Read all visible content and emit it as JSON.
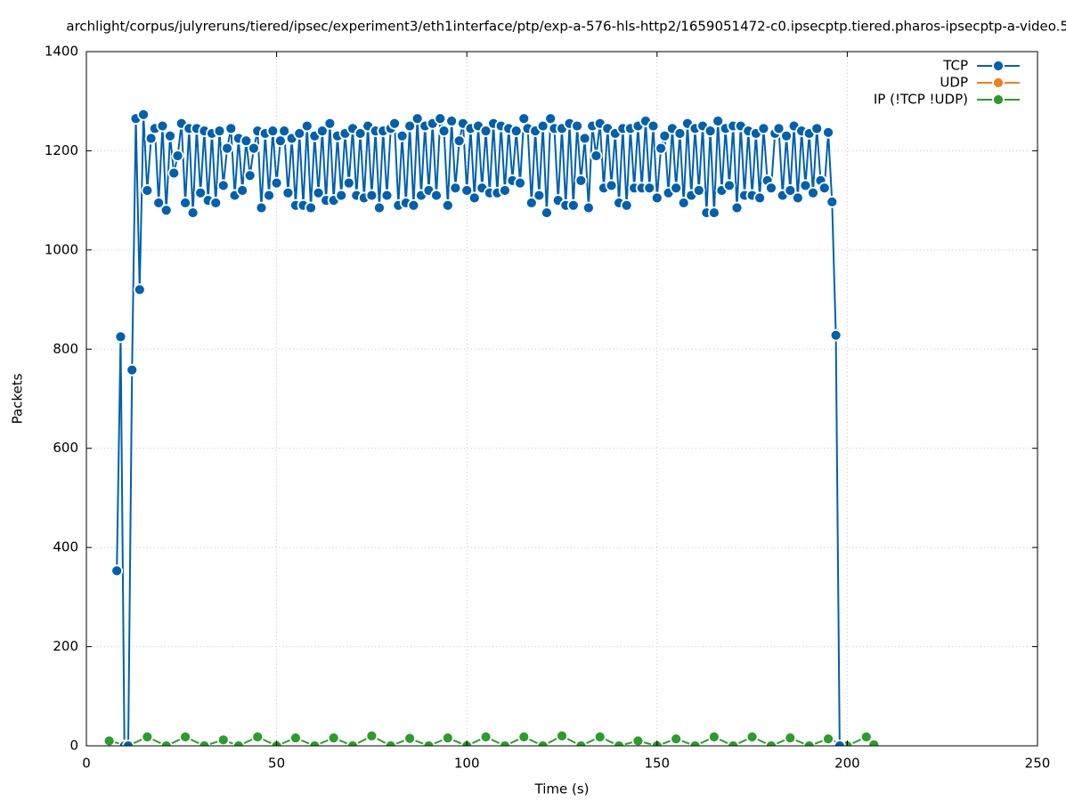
{
  "chart_data": {
    "type": "line",
    "title": "archlight/corpus/julyreruns/tiered/ipsec/experiment3/eth1interface/ptp/exp-a-576-hls-http2/1659051472-c0.ipsecptp.tiered.pharos-ipsecptp-a-video.5",
    "x_label": "Time (s)",
    "y_label": "Packets",
    "xlim": [
      0,
      250
    ],
    "xticks": [
      0,
      50,
      100,
      150,
      200,
      250
    ],
    "ylim": [
      0,
      1400
    ],
    "yticks": [
      0,
      200,
      400,
      600,
      800,
      1000,
      1200,
      1400
    ],
    "grid": true,
    "legend": "top-right",
    "series": [
      {
        "name": "TCP",
        "color": "#0060ad",
        "x": [
          8,
          9,
          10,
          11,
          12,
          13,
          14,
          15,
          16,
          17,
          18,
          19,
          20,
          21,
          22,
          23,
          24,
          25,
          26,
          27,
          28,
          29,
          30,
          31,
          32,
          33,
          34,
          35,
          36,
          37,
          38,
          39,
          40,
          41,
          42,
          43,
          44,
          45,
          46,
          47,
          48,
          49,
          50,
          51,
          52,
          53,
          54,
          55,
          56,
          57,
          58,
          59,
          60,
          61,
          62,
          63,
          64,
          65,
          66,
          67,
          68,
          69,
          70,
          71,
          72,
          73,
          74,
          75,
          76,
          77,
          78,
          79,
          80,
          81,
          82,
          83,
          84,
          85,
          86,
          87,
          88,
          89,
          90,
          91,
          92,
          93,
          94,
          95,
          96,
          97,
          98,
          99,
          100,
          101,
          102,
          103,
          104,
          105,
          106,
          107,
          108,
          109,
          110,
          111,
          112,
          113,
          114,
          115,
          116,
          117,
          118,
          119,
          120,
          121,
          122,
          123,
          124,
          125,
          126,
          127,
          128,
          129,
          130,
          131,
          132,
          133,
          134,
          135,
          136,
          137,
          138,
          139,
          140,
          141,
          142,
          143,
          144,
          145,
          146,
          147,
          148,
          149,
          150,
          151,
          152,
          153,
          154,
          155,
          156,
          157,
          158,
          159,
          160,
          161,
          162,
          163,
          164,
          165,
          166,
          167,
          168,
          169,
          170,
          171,
          172,
          173,
          174,
          175,
          176,
          177,
          178,
          179,
          180,
          181,
          182,
          183,
          184,
          185,
          186,
          187,
          188,
          189,
          190,
          191,
          192,
          193,
          194,
          195,
          196,
          197,
          198
        ],
        "values": [
          353,
          825,
          0,
          0,
          758,
          1265,
          920,
          1273,
          1120,
          1225,
          1245,
          1095,
          1250,
          1080,
          1230,
          1155,
          1190,
          1255,
          1095,
          1245,
          1075,
          1245,
          1115,
          1240,
          1100,
          1235,
          1095,
          1240,
          1130,
          1205,
          1245,
          1110,
          1225,
          1120,
          1220,
          1150,
          1205,
          1240,
          1085,
          1235,
          1110,
          1240,
          1135,
          1220,
          1240,
          1115,
          1225,
          1090,
          1235,
          1090,
          1250,
          1085,
          1230,
          1115,
          1240,
          1100,
          1255,
          1100,
          1230,
          1110,
          1235,
          1135,
          1245,
          1110,
          1235,
          1105,
          1250,
          1110,
          1240,
          1085,
          1240,
          1110,
          1245,
          1255,
          1090,
          1230,
          1095,
          1250,
          1090,
          1265,
          1110,
          1250,
          1120,
          1255,
          1110,
          1265,
          1240,
          1090,
          1260,
          1125,
          1220,
          1255,
          1120,
          1245,
          1105,
          1250,
          1125,
          1240,
          1115,
          1255,
          1115,
          1250,
          1120,
          1245,
          1140,
          1240,
          1135,
          1265,
          1245,
          1095,
          1240,
          1110,
          1250,
          1075,
          1265,
          1245,
          1100,
          1245,
          1090,
          1255,
          1090,
          1250,
          1140,
          1225,
          1085,
          1250,
          1190,
          1255,
          1125,
          1245,
          1130,
          1235,
          1095,
          1245,
          1090,
          1245,
          1125,
          1250,
          1125,
          1260,
          1125,
          1250,
          1105,
          1205,
          1230,
          1115,
          1245,
          1125,
          1235,
          1095,
          1255,
          1110,
          1245,
          1120,
          1250,
          1075,
          1240,
          1075,
          1260,
          1120,
          1245,
          1130,
          1250,
          1085,
          1250,
          1110,
          1240,
          1110,
          1235,
          1105,
          1245,
          1140,
          1125,
          1235,
          1245,
          1110,
          1230,
          1120,
          1250,
          1105,
          1240,
          1130,
          1235,
          1115,
          1245,
          1140,
          1125,
          1237,
          1097,
          828,
          0
        ]
      },
      {
        "name": "UDP",
        "color": "#f0801a",
        "x": [],
        "values": []
      },
      {
        "name": "IP (!TCP  !UDP)",
        "color": "#2a9d2a",
        "x": [
          6,
          11,
          16,
          21,
          26,
          31,
          36,
          40,
          45,
          50,
          55,
          60,
          65,
          70,
          75,
          80,
          85,
          90,
          95,
          100,
          105,
          110,
          115,
          120,
          125,
          130,
          135,
          140,
          145,
          150,
          155,
          160,
          165,
          170,
          175,
          180,
          185,
          190,
          195,
          200,
          205,
          207
        ],
        "values": [
          10,
          0,
          18,
          0,
          18,
          0,
          12,
          0,
          18,
          0,
          16,
          0,
          16,
          0,
          20,
          0,
          15,
          0,
          16,
          0,
          18,
          0,
          18,
          0,
          20,
          0,
          18,
          0,
          10,
          0,
          14,
          0,
          18,
          0,
          18,
          0,
          16,
          0,
          14,
          0,
          18,
          2
        ]
      }
    ]
  }
}
